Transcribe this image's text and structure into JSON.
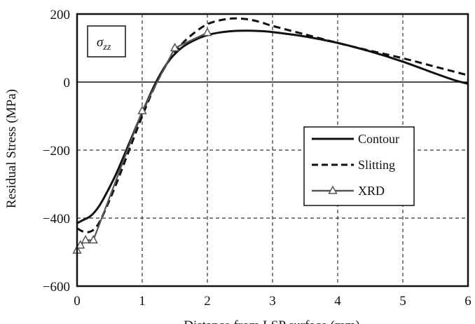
{
  "chart_data": {
    "type": "line",
    "xlabel": "Distance from LSP surface (mm)",
    "ylabel": "Residual Stress (MPa)",
    "xlim": [
      0,
      6
    ],
    "ylim": [
      -600,
      200
    ],
    "xticks": [
      0,
      1,
      2,
      3,
      4,
      5,
      6
    ],
    "yticks": [
      -600,
      -400,
      -200,
      0,
      200
    ],
    "xtick_labels": [
      "0",
      "1",
      "2",
      "3",
      "4",
      "5",
      "6"
    ],
    "ytick_labels": [
      "−600",
      "−400",
      "−200",
      "0",
      "200"
    ],
    "grid": true,
    "grid_style": "dashed",
    "legend_position": "center-right",
    "annotation": {
      "label": "σ",
      "subscript": "zz",
      "position": "top-left"
    },
    "series": [
      {
        "name": "Contour",
        "style": "solid",
        "color": "#111111",
        "x": [
          0,
          0.1,
          0.2,
          0.3,
          0.4,
          0.6,
          0.8,
          1.0,
          1.2,
          1.4,
          1.6,
          1.8,
          2.0,
          2.2,
          2.4,
          2.6,
          2.8,
          3.0,
          3.5,
          4.0,
          4.5,
          5.0,
          5.5,
          5.8,
          6.0
        ],
        "y": [
          -415,
          -405,
          -395,
          -375,
          -345,
          -270,
          -180,
          -90,
          -5,
          60,
          100,
          123,
          138,
          146,
          150,
          151,
          150,
          147,
          134,
          115,
          90,
          60,
          25,
          5,
          -5
        ]
      },
      {
        "name": "Slitting",
        "style": "dashed",
        "color": "#111111",
        "x": [
          0,
          0.1,
          0.2,
          0.3,
          0.4,
          0.6,
          0.8,
          1.0,
          1.2,
          1.4,
          1.6,
          1.8,
          2.0,
          2.2,
          2.4,
          2.6,
          2.8,
          3.0,
          3.5,
          4.0,
          4.5,
          5.0,
          5.5,
          6.0
        ],
        "y": [
          -430,
          -440,
          -440,
          -425,
          -390,
          -300,
          -200,
          -100,
          -10,
          60,
          110,
          145,
          170,
          182,
          187,
          185,
          177,
          165,
          140,
          115,
          92,
          70,
          45,
          20
        ]
      },
      {
        "name": "XRD",
        "style": "solid-marker",
        "marker": "triangle",
        "color": "#555555",
        "x": [
          0,
          0.05,
          0.13,
          0.25,
          1.0,
          1.5,
          2.0
        ],
        "y": [
          -495,
          -480,
          -465,
          -465,
          -85,
          100,
          145
        ]
      }
    ]
  }
}
